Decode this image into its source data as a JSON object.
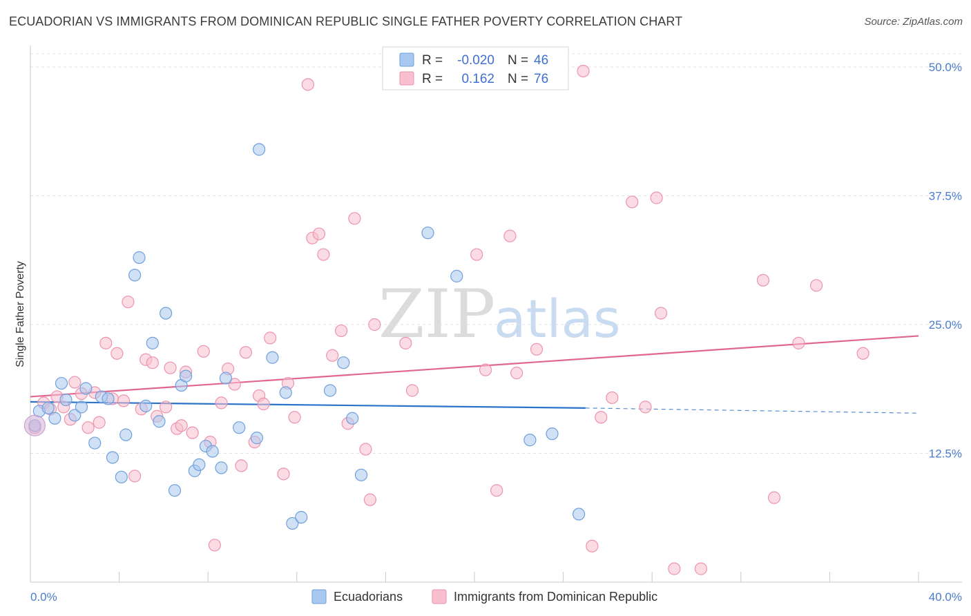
{
  "header": {
    "title": "ECUADORIAN VS IMMIGRANTS FROM DOMINICAN REPUBLIC SINGLE FATHER POVERTY CORRELATION CHART",
    "source": "Source: ZipAtlas.com"
  },
  "watermark": {
    "zip": "ZIP",
    "atlas": "atlas"
  },
  "legend_top": [
    {
      "r_label": "R =",
      "r_value": "-0.020",
      "n_label": "N =",
      "n_value": "46"
    },
    {
      "r_label": "R =",
      "r_value": "0.162",
      "n_label": "N =",
      "n_value": "76"
    }
  ],
  "legend_bottom": [
    {
      "label": "Ecuadorians"
    },
    {
      "label": "Immigrants from Dominican Republic"
    }
  ],
  "colors": {
    "blue_fill": "#a9c8ef",
    "blue_stroke": "#6f9fdd",
    "blue_line": "#2b73c9",
    "pink_fill": "#f7bfd0",
    "pink_stroke": "#ec93ae",
    "pink_line": "#e0668f",
    "grid": "#dde3ea",
    "tick_text": "#4a7ccc"
  },
  "chart_data": {
    "type": "scatter",
    "title": "ECUADORIAN VS IMMIGRANTS FROM DOMINICAN REPUBLIC SINGLE FATHER POVERTY CORRELATION CHART",
    "xlabel": "",
    "ylabel": "Single Father Poverty",
    "xlim": [
      0,
      40
    ],
    "ylim": [
      0,
      50
    ],
    "x_tick_labels": [
      "0.0%",
      "40.0%"
    ],
    "y_ticks": [
      12.5,
      25.0,
      37.5,
      50.0
    ],
    "y_tick_labels": [
      "12.5%",
      "25.0%",
      "37.5%",
      "50.0%"
    ],
    "grid": true,
    "legend_position": "top-center",
    "series": [
      {
        "name": "Ecuadorians",
        "color": "#a9c8ef",
        "trend": {
          "x": [
            0,
            25
          ],
          "y": [
            17.5,
            16.9
          ],
          "dashed_extension_to": [
            40,
            16.4
          ]
        },
        "points": [
          [
            0.2,
            15.2
          ],
          [
            0.4,
            16.6
          ],
          [
            0.8,
            16.9
          ],
          [
            1.1,
            15.9
          ],
          [
            1.4,
            19.3
          ],
          [
            1.6,
            17.7
          ],
          [
            2.0,
            16.2
          ],
          [
            2.3,
            17.0
          ],
          [
            2.5,
            18.8
          ],
          [
            2.9,
            13.5
          ],
          [
            3.2,
            18.0
          ],
          [
            3.5,
            17.8
          ],
          [
            3.7,
            12.1
          ],
          [
            4.1,
            10.2
          ],
          [
            4.3,
            14.3
          ],
          [
            4.7,
            29.8
          ],
          [
            4.9,
            31.5
          ],
          [
            5.2,
            17.1
          ],
          [
            5.5,
            23.2
          ],
          [
            5.8,
            15.6
          ],
          [
            6.1,
            26.1
          ],
          [
            6.5,
            8.9
          ],
          [
            6.8,
            19.1
          ],
          [
            7.0,
            20.0
          ],
          [
            7.4,
            10.8
          ],
          [
            7.6,
            11.4
          ],
          [
            7.9,
            13.2
          ],
          [
            8.2,
            12.7
          ],
          [
            8.6,
            11.1
          ],
          [
            8.8,
            19.8
          ],
          [
            9.4,
            15.0
          ],
          [
            10.2,
            14.0
          ],
          [
            10.3,
            42.0
          ],
          [
            10.9,
            21.8
          ],
          [
            11.5,
            18.4
          ],
          [
            11.8,
            5.7
          ],
          [
            12.2,
            6.3
          ],
          [
            13.5,
            18.6
          ],
          [
            14.1,
            21.3
          ],
          [
            14.5,
            15.9
          ],
          [
            14.9,
            10.4
          ],
          [
            17.9,
            33.9
          ],
          [
            19.2,
            29.7
          ],
          [
            22.5,
            13.8
          ],
          [
            23.5,
            14.4
          ],
          [
            24.7,
            6.6
          ]
        ]
      },
      {
        "name": "Immigrants from Dominican Republic",
        "color": "#f7bfd0",
        "trend": {
          "x": [
            0,
            40
          ],
          "y": [
            18.0,
            23.9
          ]
        },
        "points": [
          [
            0.2,
            15.0
          ],
          [
            0.6,
            17.4
          ],
          [
            0.9,
            16.8
          ],
          [
            1.2,
            18.0
          ],
          [
            1.5,
            17.0
          ],
          [
            1.8,
            15.8
          ],
          [
            2.0,
            19.4
          ],
          [
            2.3,
            18.3
          ],
          [
            2.6,
            15.0
          ],
          [
            2.9,
            18.4
          ],
          [
            3.1,
            15.5
          ],
          [
            3.4,
            23.2
          ],
          [
            3.7,
            17.8
          ],
          [
            3.9,
            22.2
          ],
          [
            4.2,
            17.6
          ],
          [
            4.4,
            27.2
          ],
          [
            4.7,
            10.3
          ],
          [
            5.0,
            16.8
          ],
          [
            5.2,
            21.6
          ],
          [
            5.5,
            21.3
          ],
          [
            5.7,
            16.1
          ],
          [
            6.1,
            17.0
          ],
          [
            6.3,
            20.8
          ],
          [
            6.6,
            14.9
          ],
          [
            6.8,
            15.2
          ],
          [
            7.0,
            20.4
          ],
          [
            7.3,
            14.5
          ],
          [
            7.8,
            22.4
          ],
          [
            8.1,
            13.6
          ],
          [
            8.3,
            3.6
          ],
          [
            8.6,
            17.4
          ],
          [
            8.9,
            20.7
          ],
          [
            9.2,
            19.2
          ],
          [
            9.5,
            11.3
          ],
          [
            9.7,
            22.3
          ],
          [
            10.1,
            13.6
          ],
          [
            10.3,
            18.1
          ],
          [
            10.5,
            17.3
          ],
          [
            10.8,
            23.7
          ],
          [
            11.4,
            10.5
          ],
          [
            11.6,
            19.3
          ],
          [
            11.9,
            16.0
          ],
          [
            12.5,
            48.3
          ],
          [
            12.7,
            33.4
          ],
          [
            13.0,
            33.8
          ],
          [
            13.2,
            31.8
          ],
          [
            13.6,
            22.0
          ],
          [
            14.0,
            24.4
          ],
          [
            14.3,
            15.4
          ],
          [
            14.6,
            35.3
          ],
          [
            15.1,
            12.9
          ],
          [
            15.3,
            8.0
          ],
          [
            15.5,
            25.0
          ],
          [
            16.9,
            23.2
          ],
          [
            17.2,
            18.6
          ],
          [
            20.1,
            31.8
          ],
          [
            20.5,
            20.6
          ],
          [
            21.0,
            8.9
          ],
          [
            21.6,
            33.6
          ],
          [
            21.9,
            20.3
          ],
          [
            22.8,
            22.6
          ],
          [
            24.9,
            49.6
          ],
          [
            25.3,
            3.5
          ],
          [
            25.7,
            16.0
          ],
          [
            26.2,
            17.9
          ],
          [
            27.1,
            36.9
          ],
          [
            27.7,
            17.0
          ],
          [
            28.2,
            37.3
          ],
          [
            28.4,
            26.1
          ],
          [
            29.0,
            1.3
          ],
          [
            30.2,
            1.3
          ],
          [
            33.0,
            29.3
          ],
          [
            33.5,
            8.2
          ],
          [
            34.6,
            23.2
          ],
          [
            35.4,
            28.8
          ],
          [
            37.5,
            22.2
          ]
        ]
      }
    ]
  }
}
